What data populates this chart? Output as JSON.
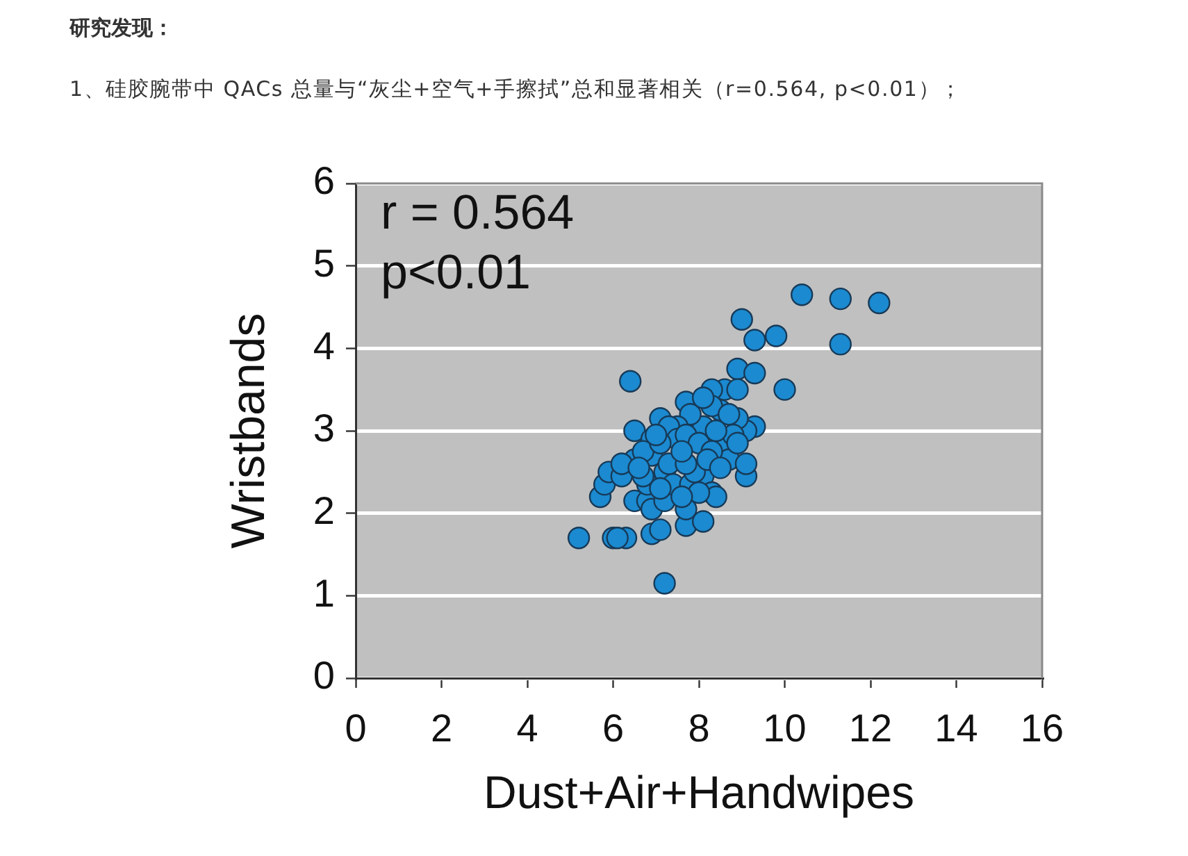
{
  "chart_data": {
    "type": "scatter",
    "title": "研究发现：",
    "subtitle": "1、硅胶腕带中 QACs 总量与“灰尘+空气+手擦拭”总和显著相关（r=0.564, p<0.01）；",
    "xlabel": "Dust+Air+Handwipes",
    "ylabel": "Wristbands",
    "annotations": [
      "r = 0.564",
      "p<0.01"
    ],
    "x": [
      5.2,
      6.0,
      6.3,
      7.2,
      6.9,
      7.1,
      7.7,
      8.1,
      5.7,
      5.8,
      5.9,
      6.2,
      6.4,
      6.5,
      6.5,
      6.5,
      6.8,
      6.9,
      7.2,
      6.8,
      6.9,
      6.9,
      7.1,
      7.7,
      7.7,
      8.1,
      8.3,
      8.4,
      8.5,
      8.7,
      9.1,
      9.1,
      9.3,
      9.1,
      8.9,
      8.9,
      9.3,
      8.5,
      8.6,
      8.3,
      8.9,
      8.1,
      7.8,
      7.5,
      7.3,
      7.5,
      7.7,
      8.0,
      8.3,
      8.8,
      9.0,
      9.3,
      9.8,
      10.0,
      10.4,
      11.3,
      11.3,
      12.2,
      6.7,
      7.2,
      7.4,
      7.8,
      8.0,
      7.6,
      7.9,
      8.3,
      8.1,
      8.7,
      7.1,
      7.3,
      7.7,
      8.2,
      8.5,
      8.9,
      7.1,
      6.7,
      6.2,
      6.1,
      6.6,
      7.0,
      7.6,
      8.4
    ],
    "values": [
      1.7,
      1.7,
      1.7,
      1.15,
      1.75,
      1.8,
      1.85,
      1.9,
      2.2,
      2.35,
      2.5,
      2.45,
      3.6,
      3.0,
      2.65,
      2.15,
      2.15,
      2.05,
      2.15,
      2.35,
      2.7,
      2.9,
      3.15,
      2.05,
      3.35,
      2.45,
      2.25,
      2.2,
      2.8,
      2.65,
      2.45,
      2.6,
      3.05,
      3.0,
      3.15,
      3.75,
      3.7,
      3.25,
      3.5,
      3.5,
      3.5,
      3.05,
      3.2,
      3.05,
      3.05,
      2.9,
      2.95,
      2.85,
      2.75,
      2.95,
      4.35,
      4.1,
      4.15,
      3.5,
      4.65,
      4.6,
      4.05,
      4.55,
      2.75,
      2.5,
      2.35,
      2.35,
      2.25,
      2.2,
      2.5,
      3.3,
      3.4,
      3.2,
      2.85,
      2.6,
      2.6,
      2.65,
      2.55,
      2.85,
      2.3,
      2.45,
      2.6,
      1.7,
      2.55,
      2.95,
      2.75,
      3.0
    ],
    "color": "#1b8ad0",
    "marker": "circle",
    "xlim": [
      0,
      16
    ],
    "xticks": [
      0,
      2,
      4,
      6,
      8,
      10,
      12,
      14,
      16
    ],
    "ylim": [
      0,
      6
    ],
    "yticks": [
      0,
      1,
      2,
      3,
      4,
      5,
      6
    ],
    "grid": "y"
  }
}
